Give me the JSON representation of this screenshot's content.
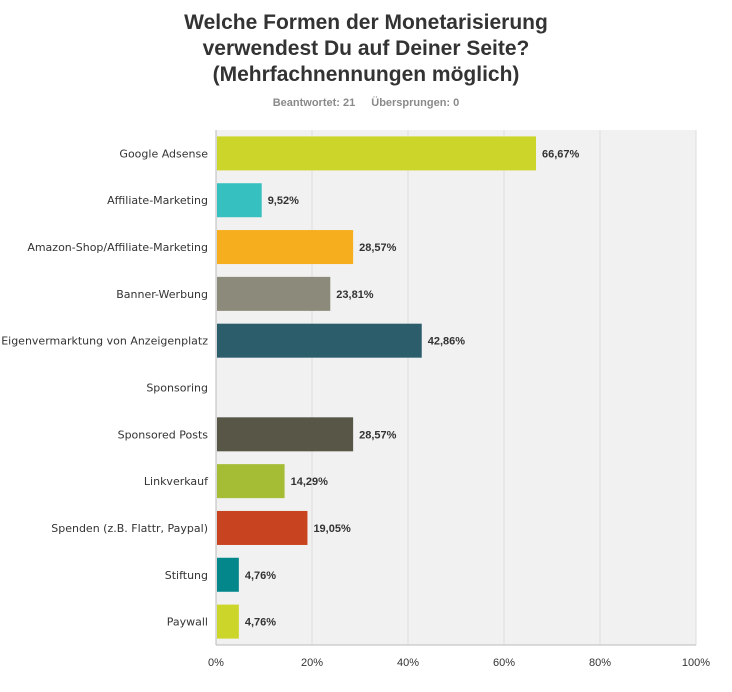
{
  "title_lines": [
    "Welche Formen der Monetarisierung",
    "verwendest Du auf Deiner Seite?",
    "(Mehrfachnennungen möglich)"
  ],
  "answered": "Beantwortet: 21",
  "skipped": "Übersprungen: 0",
  "chart_data": {
    "type": "bar",
    "orientation": "horizontal",
    "categories": [
      "Google Adsense",
      "Affiliate-Marketing",
      "Amazon-Shop/Affiliate-Marketing",
      "Banner-Werbung",
      "Eigenvermarktung von Anzeigenplatz",
      "Sponsoring",
      "Sponsored Posts",
      "Linkverkauf",
      "Spenden (z.B. Flattr, Paypal)",
      "Stiftung",
      "Paywall"
    ],
    "values": [
      66.67,
      9.52,
      28.57,
      23.81,
      42.86,
      0,
      28.57,
      14.29,
      19.05,
      4.76,
      4.76
    ],
    "value_labels": [
      "66,67%",
      "9,52%",
      "28,57%",
      "23,81%",
      "42,86%",
      "",
      "28,57%",
      "14,29%",
      "19,05%",
      "4,76%",
      "4,76%"
    ],
    "colors": [
      "#ccd52a",
      "#36c0bf",
      "#f6ae1f",
      "#8c8a7a",
      "#2b5d6b",
      "#b33f1c",
      "#575647",
      "#a5bc35",
      "#c8431f",
      "#03878a",
      "#ccd52a"
    ],
    "xlim": [
      0,
      100
    ],
    "xticks": [
      "0%",
      "20%",
      "40%",
      "60%",
      "80%",
      "100%"
    ],
    "xtick_values": [
      0,
      20,
      40,
      60,
      80,
      100
    ],
    "grid": true
  }
}
